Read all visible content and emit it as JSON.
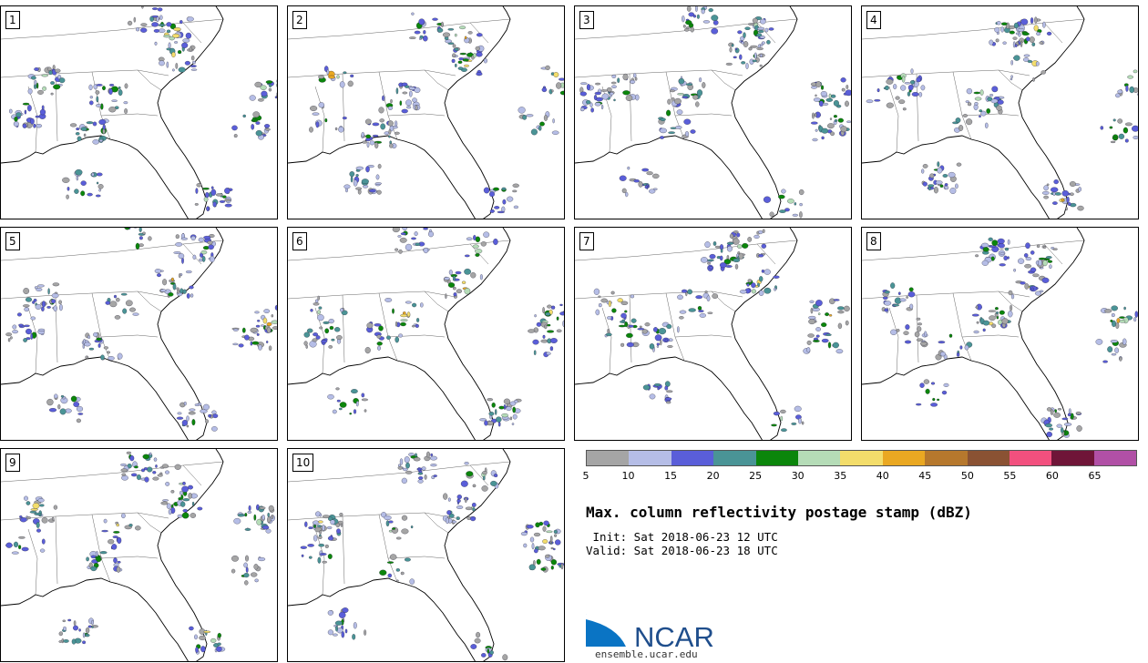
{
  "panels": [
    {
      "label": "1"
    },
    {
      "label": "2"
    },
    {
      "label": "3"
    },
    {
      "label": "4"
    },
    {
      "label": "5"
    },
    {
      "label": "6"
    },
    {
      "label": "7"
    },
    {
      "label": "8"
    },
    {
      "label": "9"
    },
    {
      "label": "10"
    }
  ],
  "colorbar": {
    "colors": [
      "#a5a5a5",
      "#b5bde6",
      "#5a5ed9",
      "#4a9496",
      "#0b860b",
      "#b5dcb7",
      "#f3dd6b",
      "#eaa822",
      "#b6782d",
      "#8a5233",
      "#f2507e",
      "#6f1538",
      "#b150a6"
    ],
    "ticks": [
      "5",
      "10",
      "15",
      "20",
      "25",
      "30",
      "35",
      "40",
      "45",
      "50",
      "55",
      "60",
      "65"
    ]
  },
  "title": "Max. column reflectivity postage stamp (dBZ)",
  "init_line": " Init: Sat 2018-06-23 12 UTC",
  "valid_line": "Valid: Sat 2018-06-23 18 UTC",
  "logo": {
    "name": "NCAR",
    "url": "ensemble.ucar.edu",
    "color": "#1f4e8c",
    "swoosh_color": "#0a74c4"
  }
}
